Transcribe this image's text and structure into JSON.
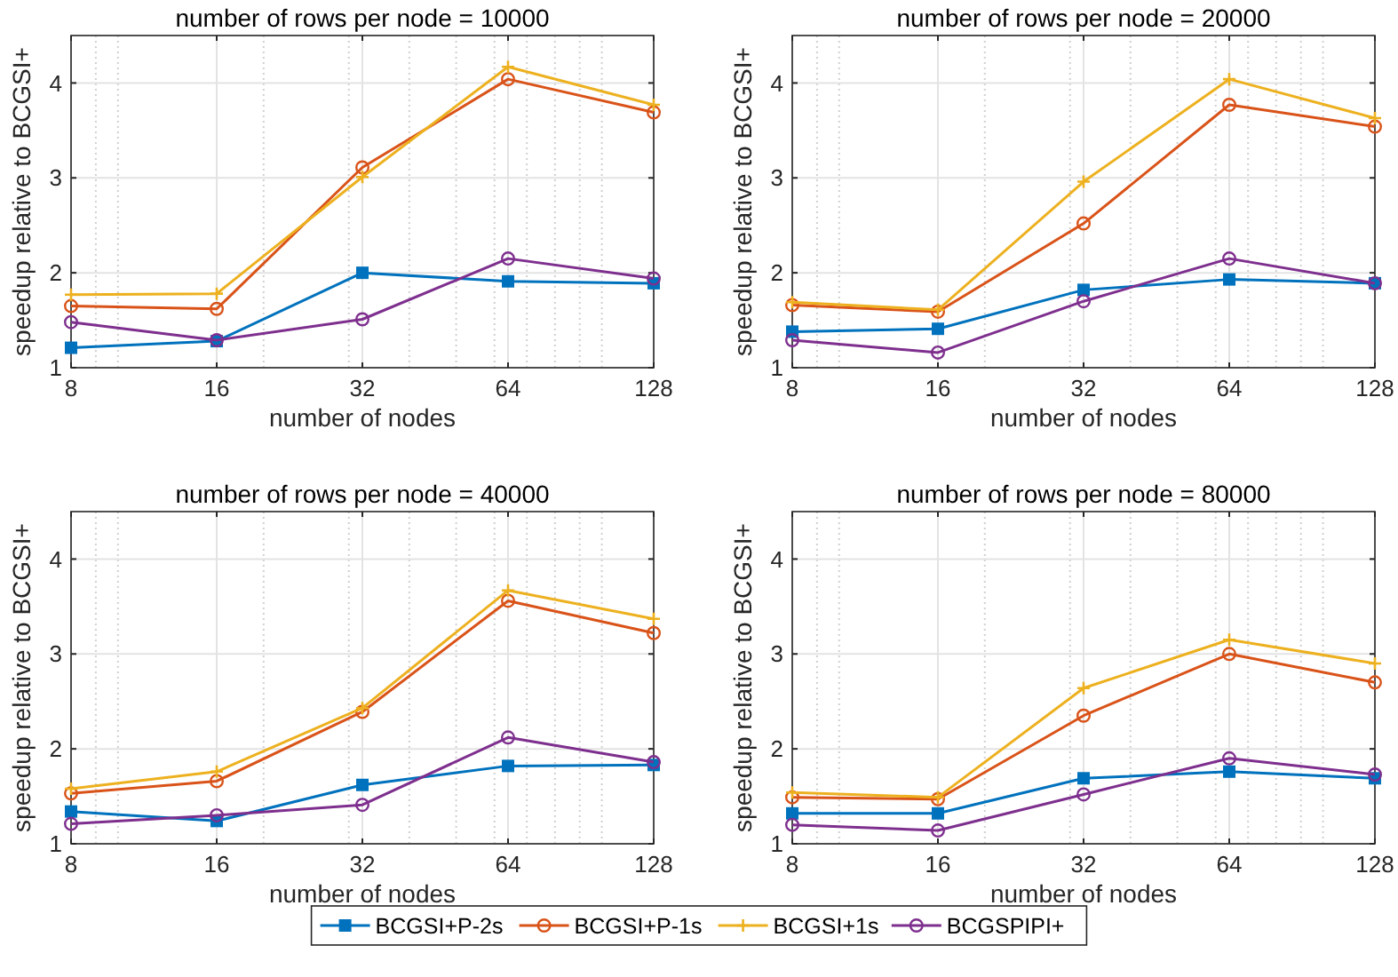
{
  "chart_data": [
    {
      "type": "line",
      "title": "number of rows per node = 10000",
      "xlabel": "number of nodes",
      "ylabel": "speedup relative to BCGSI+",
      "log": "x",
      "grid": true,
      "legend": "bottom",
      "x": [
        8,
        16,
        32,
        64,
        128
      ],
      "xlim": [
        8,
        128
      ],
      "xticks": [
        8,
        16,
        32,
        64,
        128
      ],
      "ylim": [
        1,
        4.5
      ],
      "yticks": [
        1,
        2,
        3,
        4
      ],
      "series": [
        {
          "name": "BCGSI+P-2s",
          "color": "#0072bd",
          "marker": "square",
          "values": [
            1.21,
            1.28,
            2.0,
            1.91,
            1.89
          ]
        },
        {
          "name": "BCGSI+P-1s",
          "color": "#d95319",
          "marker": "circle",
          "values": [
            1.65,
            1.62,
            3.11,
            4.04,
            3.69
          ]
        },
        {
          "name": "BCGSI+1s",
          "color": "#edb120",
          "marker": "cross",
          "values": [
            1.77,
            1.78,
            3.01,
            4.17,
            3.77
          ]
        },
        {
          "name": "BCGSPIPI+",
          "color": "#7e2f8e",
          "marker": "circle",
          "values": [
            1.48,
            1.29,
            1.51,
            2.15,
            1.94
          ]
        }
      ]
    },
    {
      "type": "line",
      "title": "number of rows per node = 20000",
      "xlabel": "number of nodes",
      "ylabel": "speedup relative to BCGSI+",
      "log": "x",
      "grid": true,
      "x": [
        8,
        16,
        32,
        64,
        128
      ],
      "xlim": [
        8,
        128
      ],
      "xticks": [
        8,
        16,
        32,
        64,
        128
      ],
      "ylim": [
        1,
        4.5
      ],
      "yticks": [
        1,
        2,
        3,
        4
      ],
      "series": [
        {
          "color": "#0072bd",
          "marker": "square",
          "values": [
            1.38,
            1.41,
            1.82,
            1.93,
            1.89
          ]
        },
        {
          "color": "#d95319",
          "marker": "circle",
          "values": [
            1.66,
            1.59,
            2.52,
            3.77,
            3.54
          ]
        },
        {
          "color": "#edb120",
          "marker": "cross",
          "values": [
            1.69,
            1.61,
            2.96,
            4.04,
            3.63
          ]
        },
        {
          "color": "#7e2f8e",
          "marker": "circle",
          "values": [
            1.29,
            1.16,
            1.7,
            2.15,
            1.89
          ]
        }
      ]
    },
    {
      "type": "line",
      "title": "number of rows per node = 40000",
      "xlabel": "number of nodes",
      "ylabel": "speedup relative to BCGSI+",
      "log": "x",
      "grid": true,
      "x": [
        8,
        16,
        32,
        64,
        128
      ],
      "xlim": [
        8,
        128
      ],
      "xticks": [
        8,
        16,
        32,
        64,
        128
      ],
      "ylim": [
        1,
        4.5
      ],
      "yticks": [
        1,
        2,
        3,
        4
      ],
      "series": [
        {
          "color": "#0072bd",
          "marker": "square",
          "values": [
            1.34,
            1.24,
            1.62,
            1.82,
            1.83
          ]
        },
        {
          "color": "#d95319",
          "marker": "circle",
          "values": [
            1.53,
            1.66,
            2.39,
            3.56,
            3.22
          ]
        },
        {
          "color": "#edb120",
          "marker": "cross",
          "values": [
            1.58,
            1.76,
            2.43,
            3.67,
            3.37
          ]
        },
        {
          "color": "#7e2f8e",
          "marker": "circle",
          "values": [
            1.21,
            1.3,
            1.41,
            2.12,
            1.86
          ]
        }
      ]
    },
    {
      "type": "line",
      "title": "number of rows per node = 80000",
      "xlabel": "number of nodes",
      "ylabel": "speedup relative to BCGSI+",
      "log": "x",
      "grid": true,
      "x": [
        8,
        16,
        32,
        64,
        128
      ],
      "xlim": [
        8,
        128
      ],
      "xticks": [
        8,
        16,
        32,
        64,
        128
      ],
      "ylim": [
        1,
        4.5
      ],
      "yticks": [
        1,
        2,
        3,
        4
      ],
      "series": [
        {
          "color": "#0072bd",
          "marker": "square",
          "values": [
            1.32,
            1.32,
            1.69,
            1.76,
            1.69
          ]
        },
        {
          "color": "#d95319",
          "marker": "circle",
          "values": [
            1.49,
            1.47,
            2.35,
            3.0,
            2.7
          ]
        },
        {
          "color": "#edb120",
          "marker": "cross",
          "values": [
            1.54,
            1.49,
            2.64,
            3.15,
            2.9
          ]
        },
        {
          "color": "#7e2f8e",
          "marker": "circle",
          "values": [
            1.2,
            1.14,
            1.52,
            1.9,
            1.73
          ]
        }
      ]
    }
  ]
}
